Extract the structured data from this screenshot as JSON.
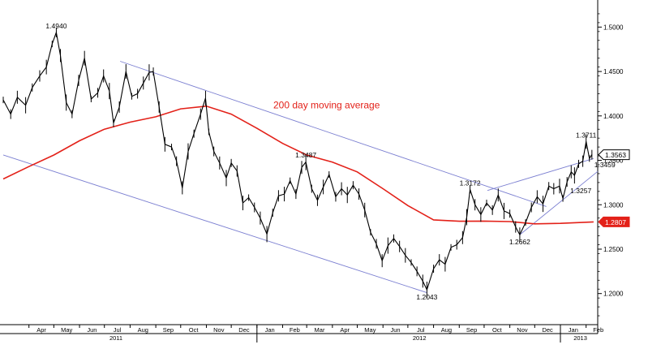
{
  "chart_data": {
    "type": "candlestick",
    "title": "",
    "xlabel": "",
    "ylabel": "",
    "x_range": [
      "2011-03-01",
      "2013-02-15"
    ],
    "ylim": [
      1.165,
      1.525
    ],
    "y_ticks": [
      "1.5000",
      "1.4500",
      "1.4000",
      "1.3500",
      "1.3000",
      "1.2500",
      "1.2000"
    ],
    "month_ticks": [
      {
        "label": "Apr",
        "date": "2011-04-01"
      },
      {
        "label": "May",
        "date": "2011-05-01"
      },
      {
        "label": "Jun",
        "date": "2011-06-01"
      },
      {
        "label": "Jul",
        "date": "2011-07-01"
      },
      {
        "label": "Aug",
        "date": "2011-08-01"
      },
      {
        "label": "Sep",
        "date": "2011-09-01"
      },
      {
        "label": "Oct",
        "date": "2011-10-01"
      },
      {
        "label": "Nov",
        "date": "2011-11-01"
      },
      {
        "label": "Dec",
        "date": "2011-12-01"
      },
      {
        "label": "Jan",
        "date": "2012-01-01"
      },
      {
        "label": "Feb",
        "date": "2012-02-01"
      },
      {
        "label": "Mar",
        "date": "2012-03-01"
      },
      {
        "label": "Apr",
        "date": "2012-04-01"
      },
      {
        "label": "May",
        "date": "2012-05-01"
      },
      {
        "label": "Jun",
        "date": "2012-06-01"
      },
      {
        "label": "Jul",
        "date": "2012-07-01"
      },
      {
        "label": "Aug",
        "date": "2012-08-01"
      },
      {
        "label": "Sep",
        "date": "2012-09-01"
      },
      {
        "label": "Oct",
        "date": "2012-10-01"
      },
      {
        "label": "Nov",
        "date": "2012-11-01"
      },
      {
        "label": "Dec",
        "date": "2012-12-01"
      },
      {
        "label": "Jan",
        "date": "2013-01-01"
      },
      {
        "label": "Feb",
        "date": "2013-02-01"
      }
    ],
    "year_labels": [
      {
        "label": "2011",
        "date": "2011-07-15"
      },
      {
        "label": "2012",
        "date": "2012-07-15"
      },
      {
        "label": "2013",
        "date": "2013-01-25"
      }
    ],
    "price_series": {
      "color": "#000000",
      "points": [
        [
          "2011-03-01",
          1.418
        ],
        [
          "2011-03-10",
          1.402
        ],
        [
          "2011-03-18",
          1.421
        ],
        [
          "2011-03-28",
          1.412
        ],
        [
          "2011-04-05",
          1.432
        ],
        [
          "2011-04-14",
          1.445
        ],
        [
          "2011-04-22",
          1.455
        ],
        [
          "2011-04-29",
          1.481
        ],
        [
          "2011-05-04",
          1.494
        ],
        [
          "2011-05-09",
          1.468
        ],
        [
          "2011-05-16",
          1.415
        ],
        [
          "2011-05-23",
          1.402
        ],
        [
          "2011-05-31",
          1.44
        ],
        [
          "2011-06-07",
          1.465
        ],
        [
          "2011-06-15",
          1.419
        ],
        [
          "2011-06-23",
          1.426
        ],
        [
          "2011-06-30",
          1.445
        ],
        [
          "2011-07-07",
          1.428
        ],
        [
          "2011-07-12",
          1.392
        ],
        [
          "2011-07-19",
          1.41
        ],
        [
          "2011-07-27",
          1.45
        ],
        [
          "2011-08-03",
          1.422
        ],
        [
          "2011-08-10",
          1.425
        ],
        [
          "2011-08-17",
          1.437
        ],
        [
          "2011-08-24",
          1.449
        ],
        [
          "2011-08-29",
          1.45
        ],
        [
          "2011-09-05",
          1.41
        ],
        [
          "2011-09-12",
          1.368
        ],
        [
          "2011-09-20",
          1.365
        ],
        [
          "2011-09-26",
          1.349
        ],
        [
          "2011-10-03",
          1.319
        ],
        [
          "2011-10-10",
          1.36
        ],
        [
          "2011-10-17",
          1.38
        ],
        [
          "2011-10-25",
          1.402
        ],
        [
          "2011-10-31",
          1.42
        ],
        [
          "2011-11-04",
          1.382
        ],
        [
          "2011-11-10",
          1.36
        ],
        [
          "2011-11-17",
          1.347
        ],
        [
          "2011-11-25",
          1.33
        ],
        [
          "2011-12-01",
          1.347
        ],
        [
          "2011-12-08",
          1.338
        ],
        [
          "2011-12-15",
          1.302
        ],
        [
          "2011-12-22",
          1.308
        ],
        [
          "2011-12-29",
          1.297
        ],
        [
          "2012-01-05",
          1.285
        ],
        [
          "2012-01-13",
          1.267
        ],
        [
          "2012-01-20",
          1.291
        ],
        [
          "2012-01-27",
          1.31
        ],
        [
          "2012-02-03",
          1.312
        ],
        [
          "2012-02-10",
          1.327
        ],
        [
          "2012-02-17",
          1.312
        ],
        [
          "2012-02-24",
          1.342
        ],
        [
          "2012-02-29",
          1.348
        ],
        [
          "2012-03-07",
          1.318
        ],
        [
          "2012-03-14",
          1.305
        ],
        [
          "2012-03-21",
          1.32
        ],
        [
          "2012-03-28",
          1.334
        ],
        [
          "2012-04-05",
          1.309
        ],
        [
          "2012-04-12",
          1.318
        ],
        [
          "2012-04-19",
          1.311
        ],
        [
          "2012-04-26",
          1.322
        ],
        [
          "2012-05-03",
          1.312
        ],
        [
          "2012-05-10",
          1.294
        ],
        [
          "2012-05-17",
          1.269
        ],
        [
          "2012-05-24",
          1.256
        ],
        [
          "2012-05-31",
          1.237
        ],
        [
          "2012-06-07",
          1.254
        ],
        [
          "2012-06-14",
          1.262
        ],
        [
          "2012-06-21",
          1.253
        ],
        [
          "2012-06-28",
          1.243
        ],
        [
          "2012-07-05",
          1.235
        ],
        [
          "2012-07-12",
          1.225
        ],
        [
          "2012-07-19",
          1.214
        ],
        [
          "2012-07-24",
          1.2043
        ],
        [
          "2012-08-01",
          1.228
        ],
        [
          "2012-08-08",
          1.238
        ],
        [
          "2012-08-15",
          1.233
        ],
        [
          "2012-08-22",
          1.252
        ],
        [
          "2012-08-29",
          1.255
        ],
        [
          "2012-09-05",
          1.263
        ],
        [
          "2012-09-10",
          1.286
        ],
        [
          "2012-09-14",
          1.3172
        ],
        [
          "2012-09-20",
          1.3
        ],
        [
          "2012-09-27",
          1.289
        ],
        [
          "2012-10-04",
          1.302
        ],
        [
          "2012-10-11",
          1.294
        ],
        [
          "2012-10-18",
          1.311
        ],
        [
          "2012-10-25",
          1.293
        ],
        [
          "2012-11-01",
          1.29
        ],
        [
          "2012-11-08",
          1.275
        ],
        [
          "2012-11-13",
          1.2662
        ],
        [
          "2012-11-20",
          1.28
        ],
        [
          "2012-11-27",
          1.297
        ],
        [
          "2012-12-04",
          1.309
        ],
        [
          "2012-12-11",
          1.301
        ],
        [
          "2012-12-18",
          1.321
        ],
        [
          "2012-12-24",
          1.318
        ],
        [
          "2012-12-31",
          1.321
        ],
        [
          "2013-01-04",
          1.307
        ],
        [
          "2013-01-09",
          1.3257
        ],
        [
          "2013-01-14",
          1.337
        ],
        [
          "2013-01-18",
          1.333
        ],
        [
          "2013-01-23",
          1.346
        ],
        [
          "2013-01-28",
          1.349
        ],
        [
          "2013-02-01",
          1.3711
        ],
        [
          "2013-02-05",
          1.352
        ],
        [
          "2013-02-08",
          1.3563
        ]
      ]
    },
    "moving_average": {
      "name": "200 day moving average",
      "color": "#e32119",
      "points": [
        [
          "2011-03-01",
          1.329
        ],
        [
          "2011-04-01",
          1.343
        ],
        [
          "2011-05-01",
          1.356
        ],
        [
          "2011-06-01",
          1.372
        ],
        [
          "2011-07-01",
          1.385
        ],
        [
          "2011-08-01",
          1.393
        ],
        [
          "2011-09-01",
          1.399
        ],
        [
          "2011-10-01",
          1.408
        ],
        [
          "2011-11-01",
          1.411
        ],
        [
          "2011-12-01",
          1.402
        ],
        [
          "2012-01-01",
          1.386
        ],
        [
          "2012-02-01",
          1.369
        ],
        [
          "2012-03-01",
          1.356
        ],
        [
          "2012-04-01",
          1.348
        ],
        [
          "2012-05-01",
          1.337
        ],
        [
          "2012-06-01",
          1.318
        ],
        [
          "2012-07-01",
          1.299
        ],
        [
          "2012-08-01",
          1.283
        ],
        [
          "2012-09-01",
          1.2814
        ],
        [
          "2012-10-01",
          1.2816
        ],
        [
          "2012-11-01",
          1.281
        ],
        [
          "2012-12-01",
          1.2785
        ],
        [
          "2013-01-01",
          1.279
        ],
        [
          "2013-02-10",
          1.2807
        ]
      ]
    },
    "trendlines": [
      {
        "color": "#7b7fd1",
        "points": [
          [
            "2011-07-20",
            1.4615
          ],
          [
            "2012-12-15",
            1.298
          ]
        ]
      },
      {
        "color": "#7b7fd1",
        "points": [
          [
            "2011-03-01",
            1.356
          ],
          [
            "2012-07-24",
            1.201
          ]
        ]
      },
      {
        "color": "#7b7fd1",
        "points": [
          [
            "2012-10-05",
            1.316
          ],
          [
            "2013-02-10",
            1.352
          ]
        ]
      },
      {
        "color": "#7b7fd1",
        "points": [
          [
            "2012-11-13",
            1.2662
          ],
          [
            "2013-02-15",
            1.3375
          ]
        ]
      }
    ],
    "annotations": [
      {
        "text": "1.4940",
        "date": "2011-05-04",
        "value": 1.494,
        "pos": "above"
      },
      {
        "text": "1.3487",
        "date": "2012-02-29",
        "value": 1.3487,
        "pos": "above"
      },
      {
        "text": "1.2043",
        "date": "2012-07-24",
        "value": 1.2043,
        "pos": "below"
      },
      {
        "text": "1.3172",
        "date": "2012-09-14",
        "value": 1.3172,
        "pos": "above"
      },
      {
        "text": "1.2662",
        "date": "2012-11-13",
        "value": 1.2662,
        "pos": "below"
      },
      {
        "text": "1.3257",
        "date": "2013-01-09",
        "value": 1.3257,
        "pos": "below-right"
      },
      {
        "text": "1.3711",
        "date": "2013-02-01",
        "value": 1.3711,
        "pos": "above"
      },
      {
        "text": "1.3459",
        "date": "2013-02-05",
        "value": 1.3459,
        "pos": "right"
      }
    ],
    "series_label": {
      "text": "200 day moving average",
      "color": "#e32119",
      "date": "2012-03-25",
      "value": 1.4085
    },
    "price_tags": [
      {
        "text": "1.3563",
        "value": 1.3563,
        "style": "outline"
      },
      {
        "text": "1.2807",
        "value": 1.2807,
        "style": "filled",
        "color": "#e32119"
      }
    ]
  }
}
